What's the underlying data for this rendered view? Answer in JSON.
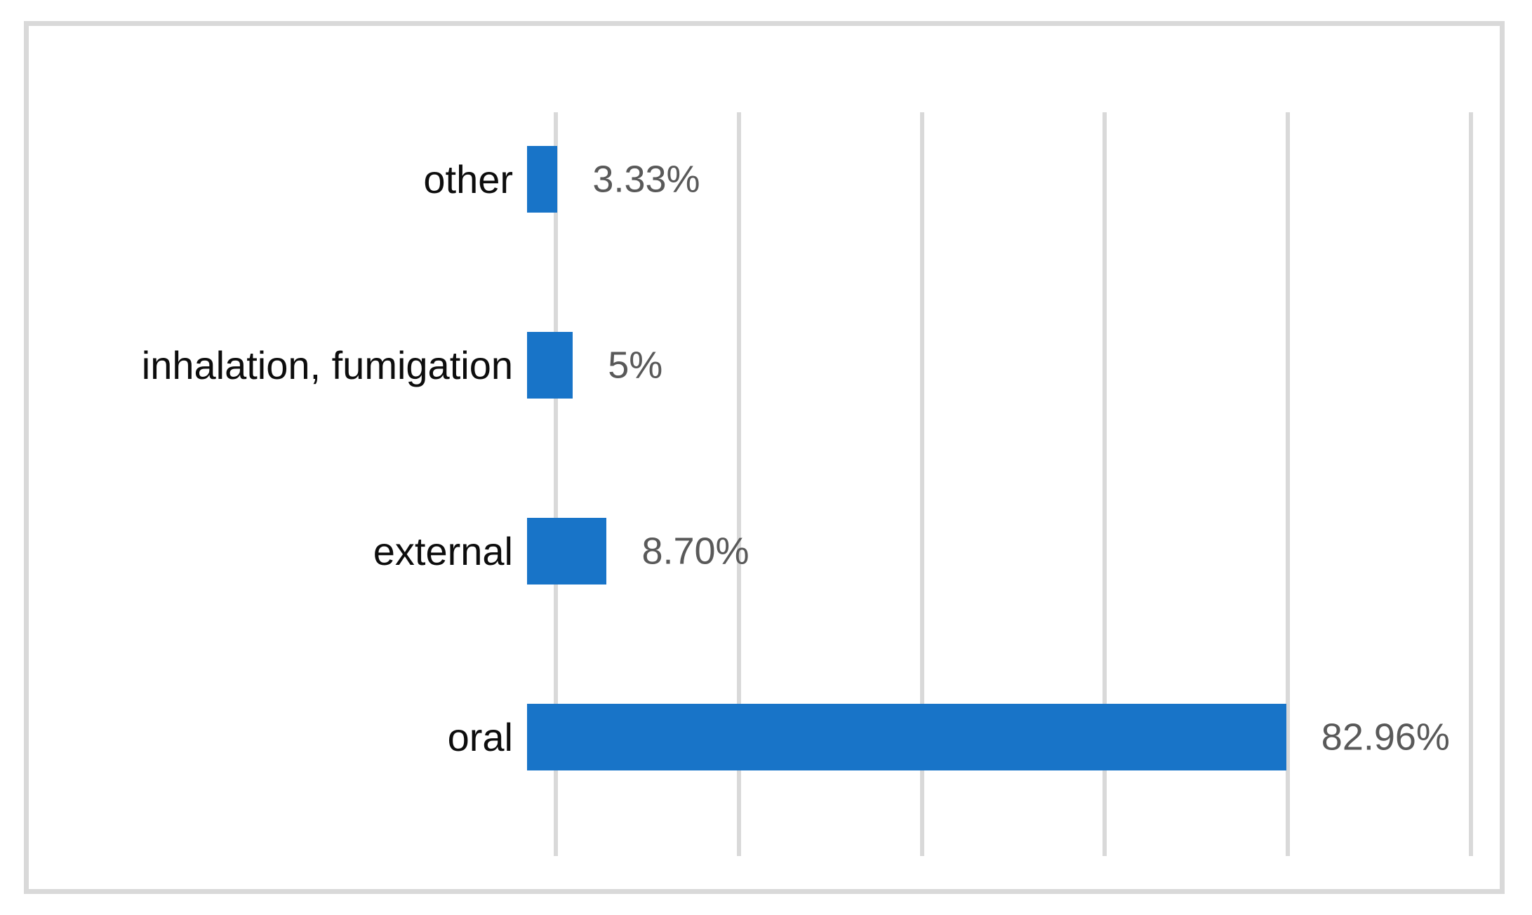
{
  "chart_data": {
    "type": "bar",
    "orientation": "horizontal",
    "title": "",
    "xlabel": "",
    "ylabel": "",
    "categories_top_to_bottom": [
      "other",
      "inhalation, fumigation",
      "external",
      "oral"
    ],
    "values": [
      3.33,
      5,
      8.7,
      82.96
    ],
    "value_labels": [
      "3.33%",
      "5%",
      "8.70%",
      "82.96%"
    ],
    "xlim": [
      0,
      100
    ],
    "gridlines_pct": [
      0,
      20,
      40,
      60,
      80,
      100
    ],
    "grid": true,
    "axis_tick_labels_visible": false,
    "legend": "none",
    "colors": {
      "bar": "#1874C8",
      "gridline": "#D9D9D9",
      "frame_border": "#D9D9D9",
      "category_label": "#0D0D0D",
      "value_label": "#595959",
      "background": "#FFFFFF"
    }
  }
}
